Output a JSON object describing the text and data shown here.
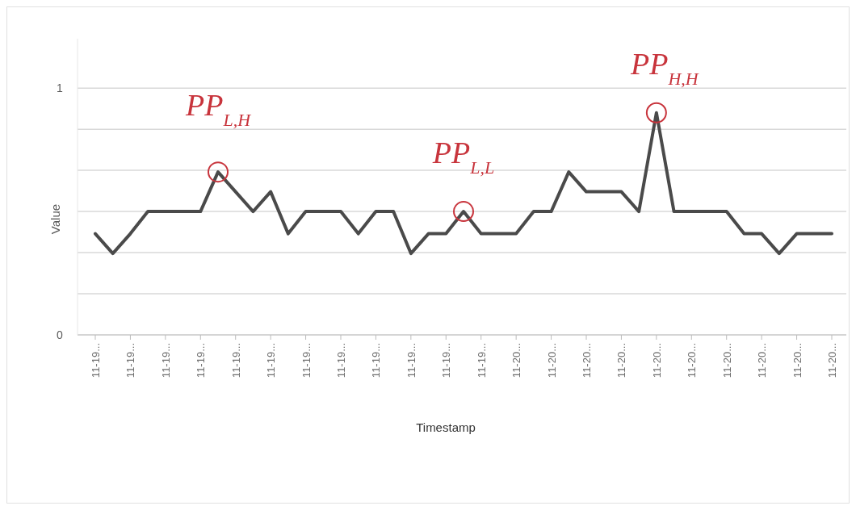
{
  "chart_data": {
    "type": "line",
    "xlabel": "Timestamp",
    "ylabel": "Value",
    "categories": [
      "11-19...",
      null,
      "11-19...",
      null,
      "11-19...",
      null,
      "11-19...",
      null,
      "11-19...",
      null,
      "11-19...",
      null,
      "11-19...",
      null,
      "11-19...",
      null,
      "11-19...",
      null,
      "11-19...",
      null,
      "11-19...",
      null,
      "11-19...",
      null,
      "11-20...",
      null,
      "11-20...",
      null,
      "11-20...",
      null,
      "11-20...",
      null,
      "11-20...",
      null,
      "11-20...",
      null,
      "11-20...",
      null,
      "11-20...",
      null,
      "11-20...",
      null,
      "11-20..."
    ],
    "series": [
      {
        "color": "#4a4a4a",
        "values": [
          0.41,
          0.33,
          0.41,
          0.5,
          0.5,
          0.5,
          0.5,
          0.66,
          0.58,
          0.5,
          0.58,
          0.41,
          0.5,
          0.5,
          0.5,
          0.41,
          0.5,
          0.5,
          0.33,
          0.41,
          0.41,
          0.5,
          0.41,
          0.41,
          0.41,
          0.5,
          0.5,
          0.66,
          0.58,
          0.58,
          0.58,
          0.5,
          0.9,
          0.5,
          0.5,
          0.5,
          0.5,
          0.41,
          0.41,
          0.33,
          0.41,
          0.41,
          0.41
        ]
      },
      {
        "type": "scatter",
        "color": "#c8343c",
        "marker": "circle",
        "values": [
          null,
          null,
          null,
          null,
          null,
          null,
          null,
          0.66,
          null,
          null,
          null,
          null,
          null,
          null,
          null,
          null,
          null,
          null,
          null,
          null,
          null,
          0.5,
          null,
          null,
          null,
          null,
          null,
          null,
          null,
          null,
          null,
          null,
          0.9,
          null,
          null,
          null,
          null,
          null,
          null,
          null,
          null,
          null,
          null
        ]
      }
    ],
    "annotations": [
      "PP$_{L,H}$",
      "PP$_{L,L}$",
      "PP$_{H,H}$"
    ],
    "ylim": [
      0,
      1.2
    ],
    "yticks": [
      0,
      {
        "value": 0.1667,
        "label": null
      },
      {
        "value": 0.3333,
        "label": null
      },
      {
        "value": 0.5,
        "label": null
      },
      {
        "value": 0.6667,
        "label": null
      },
      {
        "value": 0.8333,
        "label": null
      },
      1
    ],
    "grid": "y"
  }
}
